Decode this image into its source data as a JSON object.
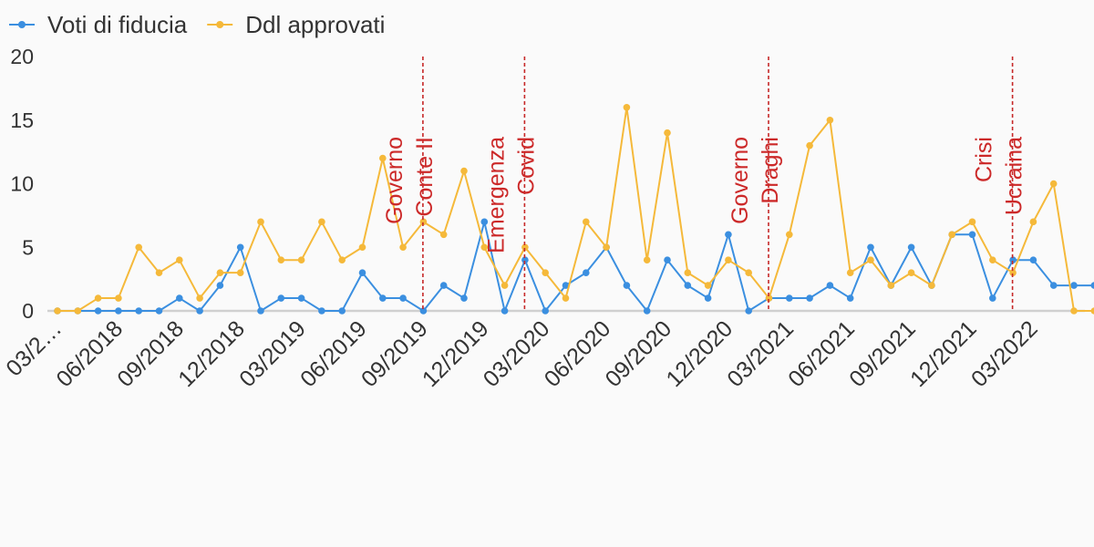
{
  "chart_data": {
    "type": "line",
    "title": "",
    "xlabel": "",
    "ylabel": "",
    "ylim": [
      0,
      20
    ],
    "yticks": [
      "0",
      "5",
      "10",
      "15",
      "20"
    ],
    "grid": false,
    "legend_position": "top-left",
    "x_tick_labels": [
      "03/2…",
      "06/2018",
      "09/2018",
      "12/2018",
      "03/2019",
      "06/2019",
      "09/2019",
      "12/2019",
      "03/2020",
      "06/2020",
      "09/2020",
      "12/2020",
      "03/2021",
      "06/2021",
      "09/2021",
      "12/2021",
      "03/2022"
    ],
    "x": [
      "03/2018",
      "04/2018",
      "05/2018",
      "06/2018",
      "07/2018",
      "08/2018",
      "09/2018",
      "10/2018",
      "11/2018",
      "12/2018",
      "01/2019",
      "02/2019",
      "03/2019",
      "04/2019",
      "05/2019",
      "06/2019",
      "07/2019",
      "08/2019",
      "09/2019",
      "10/2019",
      "11/2019",
      "12/2019",
      "01/2020",
      "02/2020",
      "03/2020",
      "04/2020",
      "05/2020",
      "06/2020",
      "07/2020",
      "08/2020",
      "09/2020",
      "10/2020",
      "11/2020",
      "12/2020",
      "01/2021",
      "02/2021",
      "03/2021",
      "04/2021",
      "05/2021",
      "06/2021",
      "07/2021",
      "08/2021",
      "09/2021",
      "10/2021",
      "11/2021",
      "12/2021",
      "01/2022",
      "02/2022",
      "03/2022",
      "04/2022",
      "05/2022",
      "06/2022"
    ],
    "series": [
      {
        "name": "Voti di fiducia",
        "color": "#3b8fe0",
        "values": [
          0,
          0,
          0,
          0,
          0,
          0,
          1,
          0,
          2,
          5,
          0,
          1,
          1,
          0,
          0,
          3,
          1,
          1,
          0,
          2,
          1,
          7,
          0,
          4,
          0,
          2,
          3,
          5,
          2,
          0,
          4,
          2,
          1,
          6,
          0,
          1,
          1,
          1,
          2,
          1,
          5,
          2,
          5,
          2,
          6,
          6,
          1,
          4,
          4,
          2,
          2,
          2
        ]
      },
      {
        "name": "Ddl approvati",
        "color": "#f5b93a",
        "values": [
          0,
          0,
          1,
          1,
          5,
          3,
          4,
          1,
          3,
          3,
          7,
          4,
          4,
          7,
          4,
          5,
          12,
          5,
          7,
          6,
          11,
          5,
          2,
          5,
          3,
          1,
          7,
          5,
          16,
          4,
          14,
          3,
          2,
          4,
          3,
          1,
          6,
          13,
          15,
          3,
          4,
          2,
          3,
          2,
          6,
          7,
          4,
          3,
          7,
          10,
          0,
          0
        ]
      }
    ],
    "annotations": [
      {
        "at": "09/2019",
        "label_lines": [
          "Governo",
          "Conte II"
        ]
      },
      {
        "at": "02/2020",
        "label_lines": [
          "Emergenza",
          "Covid"
        ]
      },
      {
        "at": "02/2021",
        "label_lines": [
          "Governo",
          "Draghi"
        ]
      },
      {
        "at": "02/2022",
        "label_lines": [
          "Crisi",
          "Ucraina"
        ]
      }
    ]
  }
}
